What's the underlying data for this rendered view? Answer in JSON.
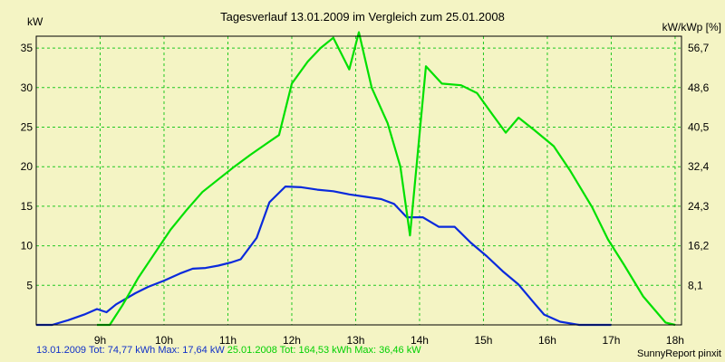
{
  "chart_data": {
    "type": "line",
    "title": "Tagesverlauf 13.01.2009 im Vergleich zum 25.01.2008",
    "ylabel_left": "kW",
    "ylabel_right": "kW/kWp [%]",
    "xlim": [
      8.0,
      18.1
    ],
    "ylim": [
      0,
      36.5
    ],
    "x_ticks": [
      9,
      10,
      11,
      12,
      13,
      14,
      15,
      16,
      17,
      18
    ],
    "x_tick_labels": [
      "9h",
      "10h",
      "11h",
      "12h",
      "13h",
      "14h",
      "15h",
      "16h",
      "17h",
      "18h"
    ],
    "y_ticks": [
      5,
      10,
      15,
      20,
      25,
      30,
      35
    ],
    "y_tick_labels": [
      "5",
      "10",
      "15",
      "20",
      "25",
      "30",
      "35"
    ],
    "y2_ticks": [
      5,
      10,
      15,
      20,
      25,
      30,
      35
    ],
    "y2_tick_labels": [
      "8,1",
      "16,2",
      "24,3",
      "32,4",
      "40,5",
      "48,6",
      "56,7"
    ],
    "grid": true,
    "series": [
      {
        "color": "#0a2adc",
        "x": [
          8.0,
          8.25,
          8.5,
          8.75,
          8.95,
          9.1,
          9.25,
          9.4,
          9.55,
          9.75,
          10.0,
          10.25,
          10.45,
          10.65,
          10.85,
          11.05,
          11.2,
          11.45,
          11.65,
          11.9,
          12.15,
          12.4,
          12.65,
          12.9,
          13.15,
          13.4,
          13.6,
          13.8,
          14.05,
          14.3,
          14.55,
          14.8,
          15.05,
          15.3,
          15.55,
          15.8,
          15.95,
          16.2,
          16.5,
          16.8,
          17.0
        ],
        "values": [
          0,
          0,
          0.6,
          1.3,
          2.0,
          1.6,
          2.6,
          3.3,
          4.0,
          4.8,
          5.6,
          6.5,
          7.1,
          7.2,
          7.5,
          7.9,
          8.3,
          11.0,
          15.5,
          17.5,
          17.4,
          17.1,
          16.9,
          16.5,
          16.2,
          15.9,
          15.3,
          13.6,
          13.6,
          12.4,
          12.4,
          10.4,
          8.7,
          6.8,
          5.1,
          2.7,
          1.3,
          0.4,
          0,
          0,
          0
        ]
      },
      {
        "color": "#00e000",
        "x": [
          8.95,
          9.15,
          9.35,
          9.6,
          9.85,
          10.1,
          10.35,
          10.6,
          10.85,
          11.1,
          11.35,
          11.6,
          11.8,
          12.0,
          12.25,
          12.45,
          12.65,
          12.9,
          13.05,
          13.25,
          13.5,
          13.7,
          13.85,
          14.1,
          14.35,
          14.65,
          14.9,
          15.15,
          15.35,
          15.55,
          15.8,
          16.1,
          16.35,
          16.7,
          16.95,
          17.2,
          17.5,
          17.85,
          18.0
        ],
        "values": [
          0,
          0,
          2.5,
          6.0,
          9.0,
          12.0,
          14.5,
          16.8,
          18.4,
          20.0,
          21.5,
          22.9,
          24.0,
          30.5,
          33.3,
          35.0,
          36.3,
          32.3,
          37.0,
          30.0,
          25.5,
          20.0,
          11.3,
          32.7,
          30.5,
          30.3,
          29.3,
          26.5,
          24.3,
          26.2,
          24.6,
          22.6,
          19.6,
          14.9,
          10.8,
          7.6,
          3.6,
          0.3,
          0
        ]
      }
    ]
  },
  "legend": {
    "blue_text": "13.01.2009 Tot: 74,77 kWh Max: 17,64 kW",
    "green_text": "25.01.2008 Tot: 164,53 kWh Max: 36,46 kW"
  },
  "credit": "SunnyReport pinxit"
}
